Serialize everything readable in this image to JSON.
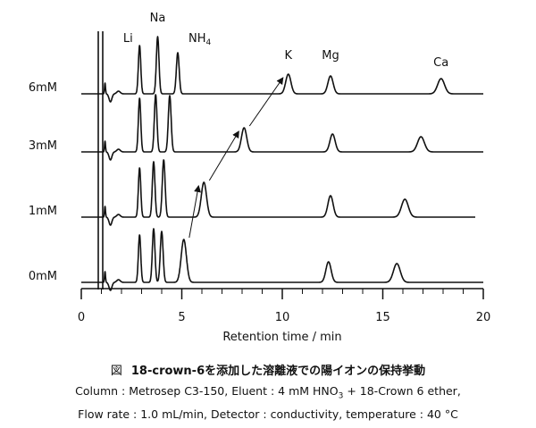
{
  "chart_data": {
    "type": "line",
    "xlabel": "Retention time / min",
    "xlim": [
      0,
      20
    ],
    "xticks": [
      0,
      5,
      10,
      15,
      20
    ],
    "grid": false,
    "series": [
      {
        "name": "6mM",
        "peaks": [
          {
            "label": "Li",
            "rt": 2.9
          },
          {
            "label": "Na",
            "rt": 3.8
          },
          {
            "label": "NH4",
            "rt": 4.8
          },
          {
            "label": "K",
            "rt": 10.3
          },
          {
            "label": "Mg",
            "rt": 12.4
          },
          {
            "label": "Ca",
            "rt": 17.9
          }
        ]
      },
      {
        "name": "3mM",
        "peaks": [
          {
            "label": "Li",
            "rt": 2.9
          },
          {
            "label": "Na",
            "rt": 3.7
          },
          {
            "label": "NH4",
            "rt": 4.4
          },
          {
            "label": "K",
            "rt": 8.1
          },
          {
            "label": "Mg",
            "rt": 12.5
          },
          {
            "label": "Ca",
            "rt": 16.9
          }
        ]
      },
      {
        "name": "1mM",
        "peaks": [
          {
            "label": "Li",
            "rt": 2.9
          },
          {
            "label": "Na",
            "rt": 3.6
          },
          {
            "label": "NH4",
            "rt": 4.1
          },
          {
            "label": "K",
            "rt": 6.1
          },
          {
            "label": "Mg",
            "rt": 12.4
          },
          {
            "label": "Ca",
            "rt": 16.1
          }
        ]
      },
      {
        "name": "0mM",
        "peaks": [
          {
            "label": "Li",
            "rt": 2.9
          },
          {
            "label": "Na",
            "rt": 3.6
          },
          {
            "label": "NH4",
            "rt": 4.0
          },
          {
            "label": "K",
            "rt": 5.1
          },
          {
            "label": "Mg",
            "rt": 12.3
          },
          {
            "label": "Ca",
            "rt": 15.7
          }
        ]
      }
    ],
    "peak_labels": {
      "Li": "Li",
      "Na": "Na",
      "NH4": "NH",
      "NH4_sub": "4",
      "K": "K",
      "Mg": "Mg",
      "Ca": "Ca"
    },
    "annotations": "arrows trace the K peak shift from 0mM to 6mM"
  },
  "caption": {
    "fig_mark": "図",
    "title": "18-crown-6を添加した溶離液での陽イオンの保持挙動",
    "line1_pre": "Column : Metrosep C3-150, Eluent : 4 mM HNO",
    "line1_sub": "3",
    "line1_post": " + 18-Crown 6 ether,",
    "line2": "Flow rate : 1.0 mL/min, Detector : conductivity, temperature : 40 °C"
  }
}
